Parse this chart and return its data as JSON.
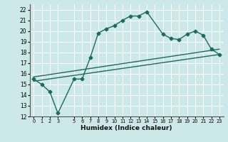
{
  "xlabel": "Humidex (Indice chaleur)",
  "ylabel": "",
  "xlim": [
    -0.5,
    23.5
  ],
  "ylim": [
    12,
    22.5
  ],
  "yticks": [
    12,
    13,
    14,
    15,
    16,
    17,
    18,
    19,
    20,
    21,
    22
  ],
  "xticks": [
    0,
    1,
    2,
    3,
    5,
    6,
    7,
    8,
    9,
    10,
    11,
    12,
    13,
    14,
    15,
    16,
    17,
    18,
    19,
    20,
    21,
    22,
    23
  ],
  "bg_color": "#cce8e8",
  "grid_color": "#ffffff",
  "line_color": "#1a6b5e",
  "curve1_x": [
    0,
    1,
    2,
    3,
    5,
    6,
    7,
    8,
    9,
    10,
    11,
    12,
    13,
    14,
    16,
    17,
    18,
    19,
    20,
    21,
    22,
    23
  ],
  "curve1_y": [
    15.5,
    15.0,
    14.3,
    12.3,
    15.5,
    15.5,
    17.5,
    19.8,
    20.2,
    20.5,
    21.0,
    21.4,
    21.4,
    21.8,
    19.7,
    19.3,
    19.2,
    19.7,
    20.0,
    19.6,
    18.3,
    17.8
  ],
  "curve2_x": [
    0,
    23
  ],
  "curve2_y": [
    15.3,
    17.8
  ],
  "curve3_x": [
    0,
    23
  ],
  "curve3_y": [
    15.7,
    18.3
  ],
  "marker_style": "D",
  "marker_size": 2.5,
  "line_width": 1.0
}
